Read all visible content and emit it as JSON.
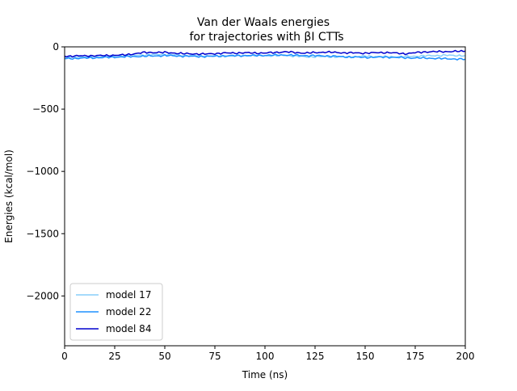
{
  "chart_data": {
    "type": "line",
    "title_lines": [
      "Van der Waals energies",
      "for trajectories with βI CTTs"
    ],
    "xlabel": "Time (ns)",
    "ylabel": "Energies (kcal/mol)",
    "xlim": [
      0,
      200
    ],
    "ylim": [
      -2400,
      0
    ],
    "xticks": [
      0,
      25,
      50,
      75,
      100,
      125,
      150,
      175,
      200
    ],
    "xtick_labels": [
      "0",
      "25",
      "50",
      "75",
      "100",
      "125",
      "150",
      "175",
      "200"
    ],
    "yticks": [
      0,
      -500,
      -1000,
      -1500,
      -2000
    ],
    "ytick_labels": [
      "0",
      "−500",
      "−1000",
      "−1500",
      "−2000"
    ],
    "grid": false,
    "legend_position": "lower-left",
    "series": [
      {
        "name": "model 17",
        "color": "#87cefa",
        "x": [
          0,
          10,
          20,
          30,
          40,
          50,
          60,
          70,
          80,
          90,
          100,
          110,
          120,
          130,
          140,
          150,
          160,
          170,
          180,
          190,
          200
        ],
        "y": [
          -85,
          -80,
          -78,
          -70,
          -65,
          -60,
          -70,
          -72,
          -75,
          -70,
          -72,
          -68,
          -80,
          -78,
          -82,
          -75,
          -80,
          -78,
          -72,
          -68,
          -70
        ]
      },
      {
        "name": "model 22",
        "color": "#1e90ff",
        "x": [
          0,
          10,
          20,
          30,
          40,
          50,
          60,
          70,
          80,
          90,
          100,
          110,
          120,
          130,
          140,
          150,
          160,
          170,
          180,
          190,
          200
        ],
        "y": [
          -95,
          -90,
          -85,
          -80,
          -75,
          -70,
          -75,
          -78,
          -72,
          -70,
          -68,
          -65,
          -70,
          -72,
          -80,
          -85,
          -82,
          -88,
          -90,
          -95,
          -100
        ]
      },
      {
        "name": "model 84",
        "color": "#0000cd",
        "x": [
          0,
          10,
          20,
          30,
          40,
          50,
          60,
          70,
          80,
          90,
          100,
          110,
          120,
          130,
          140,
          150,
          160,
          170,
          180,
          190,
          200
        ],
        "y": [
          -75,
          -72,
          -70,
          -65,
          -45,
          -45,
          -55,
          -58,
          -50,
          -48,
          -50,
          -40,
          -50,
          -42,
          -48,
          -50,
          -45,
          -55,
          -40,
          -38,
          -35
        ]
      }
    ]
  }
}
